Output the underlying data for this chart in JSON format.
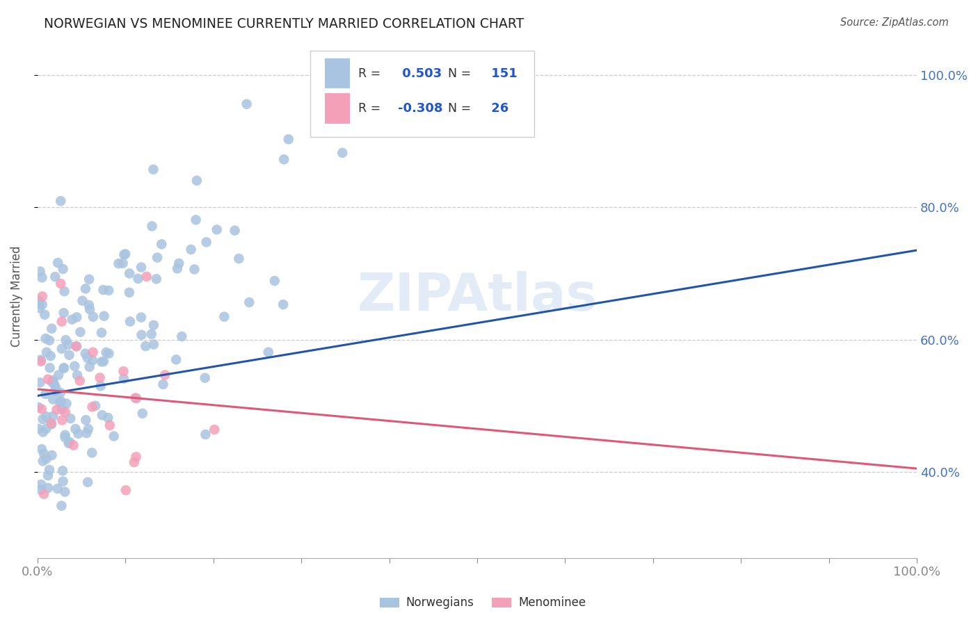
{
  "title": "NORWEGIAN VS MENOMINEE CURRENTLY MARRIED CORRELATION CHART",
  "source": "Source: ZipAtlas.com",
  "ylabel": "Currently Married",
  "norwegian_R": 0.503,
  "norwegian_N": 151,
  "menominee_R": -0.308,
  "menominee_N": 26,
  "norwegian_color": "#a8c4e0",
  "menominee_color": "#f4a0b8",
  "norwegian_line_color": "#2255aa",
  "menominee_line_color": "#e05878",
  "legend_R_color": "#2255cc",
  "legend_N_color": "#2255cc",
  "title_color": "#222222",
  "axis_label_color": "#4472c4",
  "watermark": "ZIPAtlas",
  "background_color": "#ffffff",
  "xlim": [
    0,
    1
  ],
  "ylim": [
    0.27,
    1.06
  ],
  "nor_line_x0": 0.0,
  "nor_line_y0": 0.515,
  "nor_line_x1": 1.0,
  "nor_line_y1": 0.735,
  "men_line_x0": 0.0,
  "men_line_y0": 0.525,
  "men_line_x1": 1.0,
  "men_line_y1": 0.405
}
